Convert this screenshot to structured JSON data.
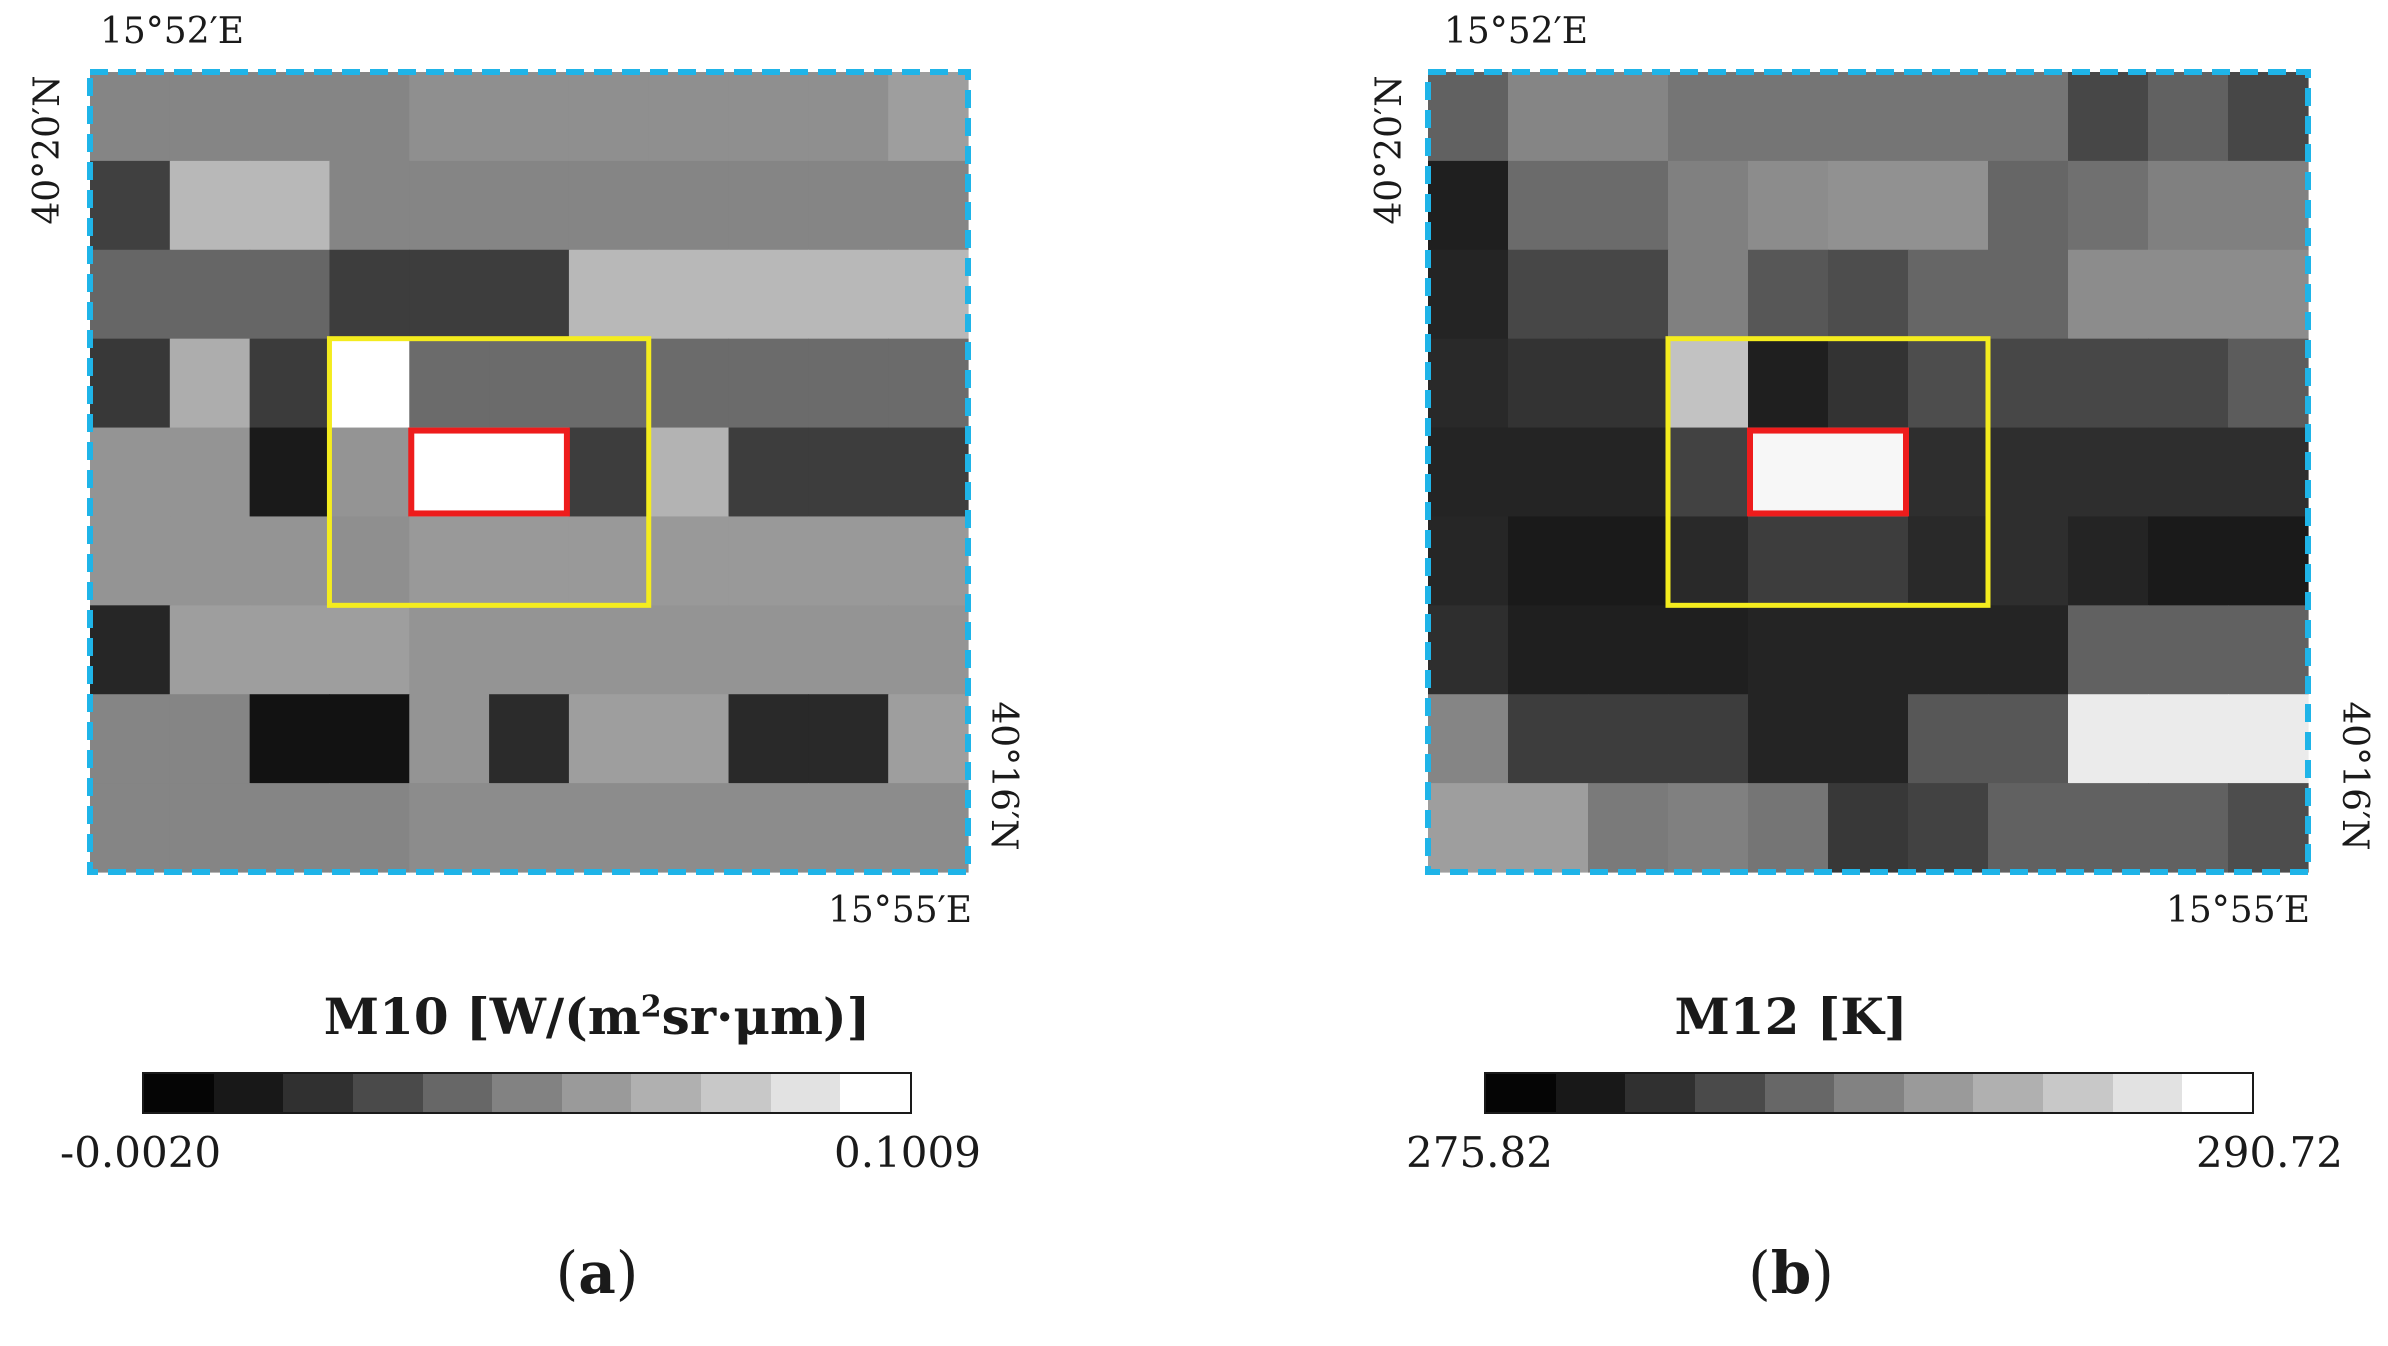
{
  "figure": {
    "panels": [
      {
        "id": "a",
        "label_open": "(",
        "label_letter": "a",
        "label_close": ")",
        "lon_west": "15°52′E",
        "lon_east": "15°55′E",
        "lat_north": "40°20′N",
        "lat_south": "40°16′N",
        "colorbar": {
          "title_prefix": "M10 [W/(m",
          "title_sup": "2",
          "title_suffix": "sr·μm)]",
          "min": "-0.0020",
          "max": "0.1009"
        }
      },
      {
        "id": "b",
        "label_open": "(",
        "label_letter": "b",
        "label_close": ")",
        "lon_west": "15°52′E",
        "lon_east": "15°55′E",
        "lat_north": "40°20′N",
        "lat_south": "40°16′N",
        "colorbar": {
          "title": "M12 [K]",
          "min": "275.82",
          "max": "290.72"
        }
      }
    ]
  },
  "colors": {
    "frame": "#1fb4e8",
    "window": "#f4ec1e",
    "target": "#ee1c1c",
    "ramp": [
      "#050505",
      "#181818",
      "#303030",
      "#4a4a4a",
      "#676767",
      "#828282",
      "#9a9a9a",
      "#b0b0b0",
      "#c8c8c8",
      "#e2e2e2",
      "#ffffff"
    ]
  },
  "grids": {
    "a": [
      [
        0.52,
        0.52,
        0.52,
        0.52,
        0.56,
        0.56,
        0.56,
        0.56,
        0.56,
        0.56,
        0.62
      ],
      [
        0.25,
        0.72,
        0.72,
        0.52,
        0.52,
        0.52,
        0.52,
        0.52,
        0.52,
        0.52,
        0.52
      ],
      [
        0.4,
        0.4,
        0.4,
        0.24,
        0.24,
        0.24,
        0.72,
        0.72,
        0.72,
        0.72,
        0.72
      ],
      [
        0.22,
        0.68,
        0.23,
        1.0,
        0.42,
        0.42,
        0.42,
        0.42,
        0.42,
        0.42,
        0.42
      ],
      [
        0.58,
        0.58,
        0.1,
        0.58,
        1.0,
        1.0,
        0.24,
        0.7,
        0.24,
        0.24,
        0.24
      ],
      [
        0.58,
        0.58,
        0.58,
        0.56,
        0.6,
        0.6,
        0.6,
        0.6,
        0.6,
        0.6,
        0.6
      ],
      [
        0.15,
        0.62,
        0.62,
        0.62,
        0.58,
        0.58,
        0.58,
        0.58,
        0.58,
        0.58,
        0.58
      ],
      [
        0.52,
        0.52,
        0.07,
        0.07,
        0.58,
        0.17,
        0.62,
        0.62,
        0.16,
        0.16,
        0.62
      ],
      [
        0.52,
        0.52,
        0.52,
        0.52,
        0.55,
        0.55,
        0.55,
        0.55,
        0.55,
        0.55,
        0.55
      ]
    ],
    "b": [
      [
        0.38,
        0.52,
        0.52,
        0.46,
        0.46,
        0.46,
        0.46,
        0.46,
        0.28,
        0.38,
        0.28
      ],
      [
        0.12,
        0.42,
        0.42,
        0.5,
        0.55,
        0.57,
        0.57,
        0.4,
        0.44,
        0.5,
        0.5
      ],
      [
        0.14,
        0.28,
        0.28,
        0.5,
        0.34,
        0.3,
        0.4,
        0.4,
        0.55,
        0.55,
        0.55
      ],
      [
        0.16,
        0.2,
        0.2,
        0.76,
        0.12,
        0.2,
        0.3,
        0.28,
        0.28,
        0.28,
        0.36
      ],
      [
        0.14,
        0.14,
        0.14,
        0.26,
        0.97,
        0.97,
        0.18,
        0.18,
        0.18,
        0.18,
        0.18
      ],
      [
        0.15,
        0.1,
        0.1,
        0.16,
        0.24,
        0.24,
        0.16,
        0.18,
        0.14,
        0.1,
        0.1
      ],
      [
        0.18,
        0.12,
        0.12,
        0.12,
        0.14,
        0.14,
        0.14,
        0.14,
        0.38,
        0.38,
        0.38
      ],
      [
        0.52,
        0.24,
        0.24,
        0.24,
        0.14,
        0.14,
        0.34,
        0.34,
        0.92,
        0.92,
        0.92
      ],
      [
        0.62,
        0.62,
        0.48,
        0.5,
        0.46,
        0.22,
        0.26,
        0.38,
        0.38,
        0.38,
        0.3
      ]
    ]
  }
}
